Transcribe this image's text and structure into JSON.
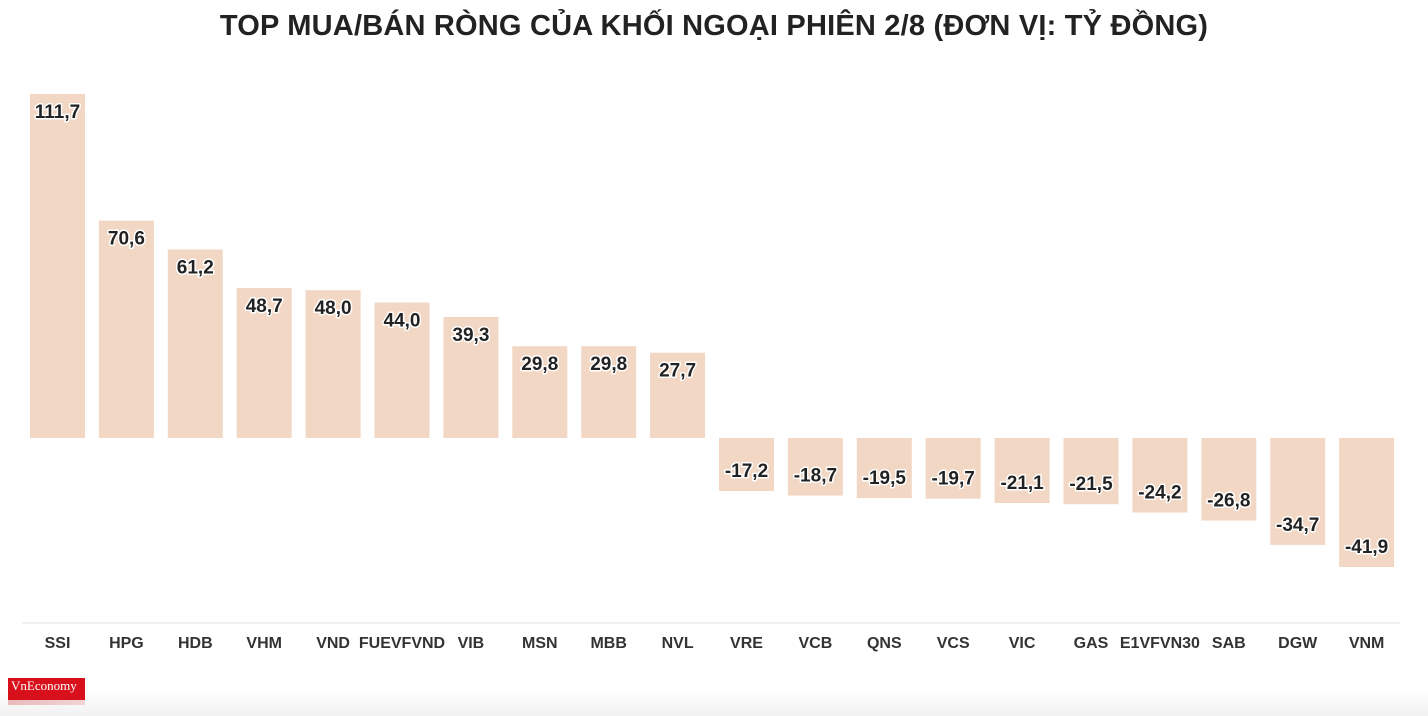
{
  "chart_data": {
    "type": "bar",
    "title": "TOP MUA/BÁN RÒNG CỦA KHỐI NGOẠI PHIÊN 2/8 (ĐƠN VỊ: TỶ ĐỒNG)",
    "categories": [
      "SSI",
      "HPG",
      "HDB",
      "VHM",
      "VND",
      "FUEVFVND",
      "VIB",
      "MSN",
      "MBB",
      "NVL",
      "VRE",
      "VCB",
      "QNS",
      "VCS",
      "VIC",
      "GAS",
      "E1VFVN30",
      "SAB",
      "DGW",
      "VNM"
    ],
    "values": [
      111.7,
      70.6,
      61.2,
      48.7,
      48.0,
      44.0,
      39.3,
      29.8,
      29.8,
      27.7,
      -17.2,
      -18.7,
      -19.5,
      -19.7,
      -21.1,
      -21.5,
      -24.2,
      -26.8,
      -34.7,
      -41.9
    ],
    "data_labels": [
      "111,7",
      "70,6",
      "61,2",
      "48,7",
      "48,0",
      "44,0",
      "39,3",
      "29,8",
      "29,8",
      "27,7",
      "-17,2",
      "-18,7",
      "-19,5",
      "-19,7",
      "-21,1",
      "-21,5",
      "-24,2",
      "-26,8",
      "-34,7",
      "-41,9"
    ],
    "xlabel": "",
    "ylabel": "",
    "grid": false,
    "legend": "none",
    "bar_color": "#f2d8c4"
  },
  "logo": {
    "text": "VnEconomy"
  }
}
